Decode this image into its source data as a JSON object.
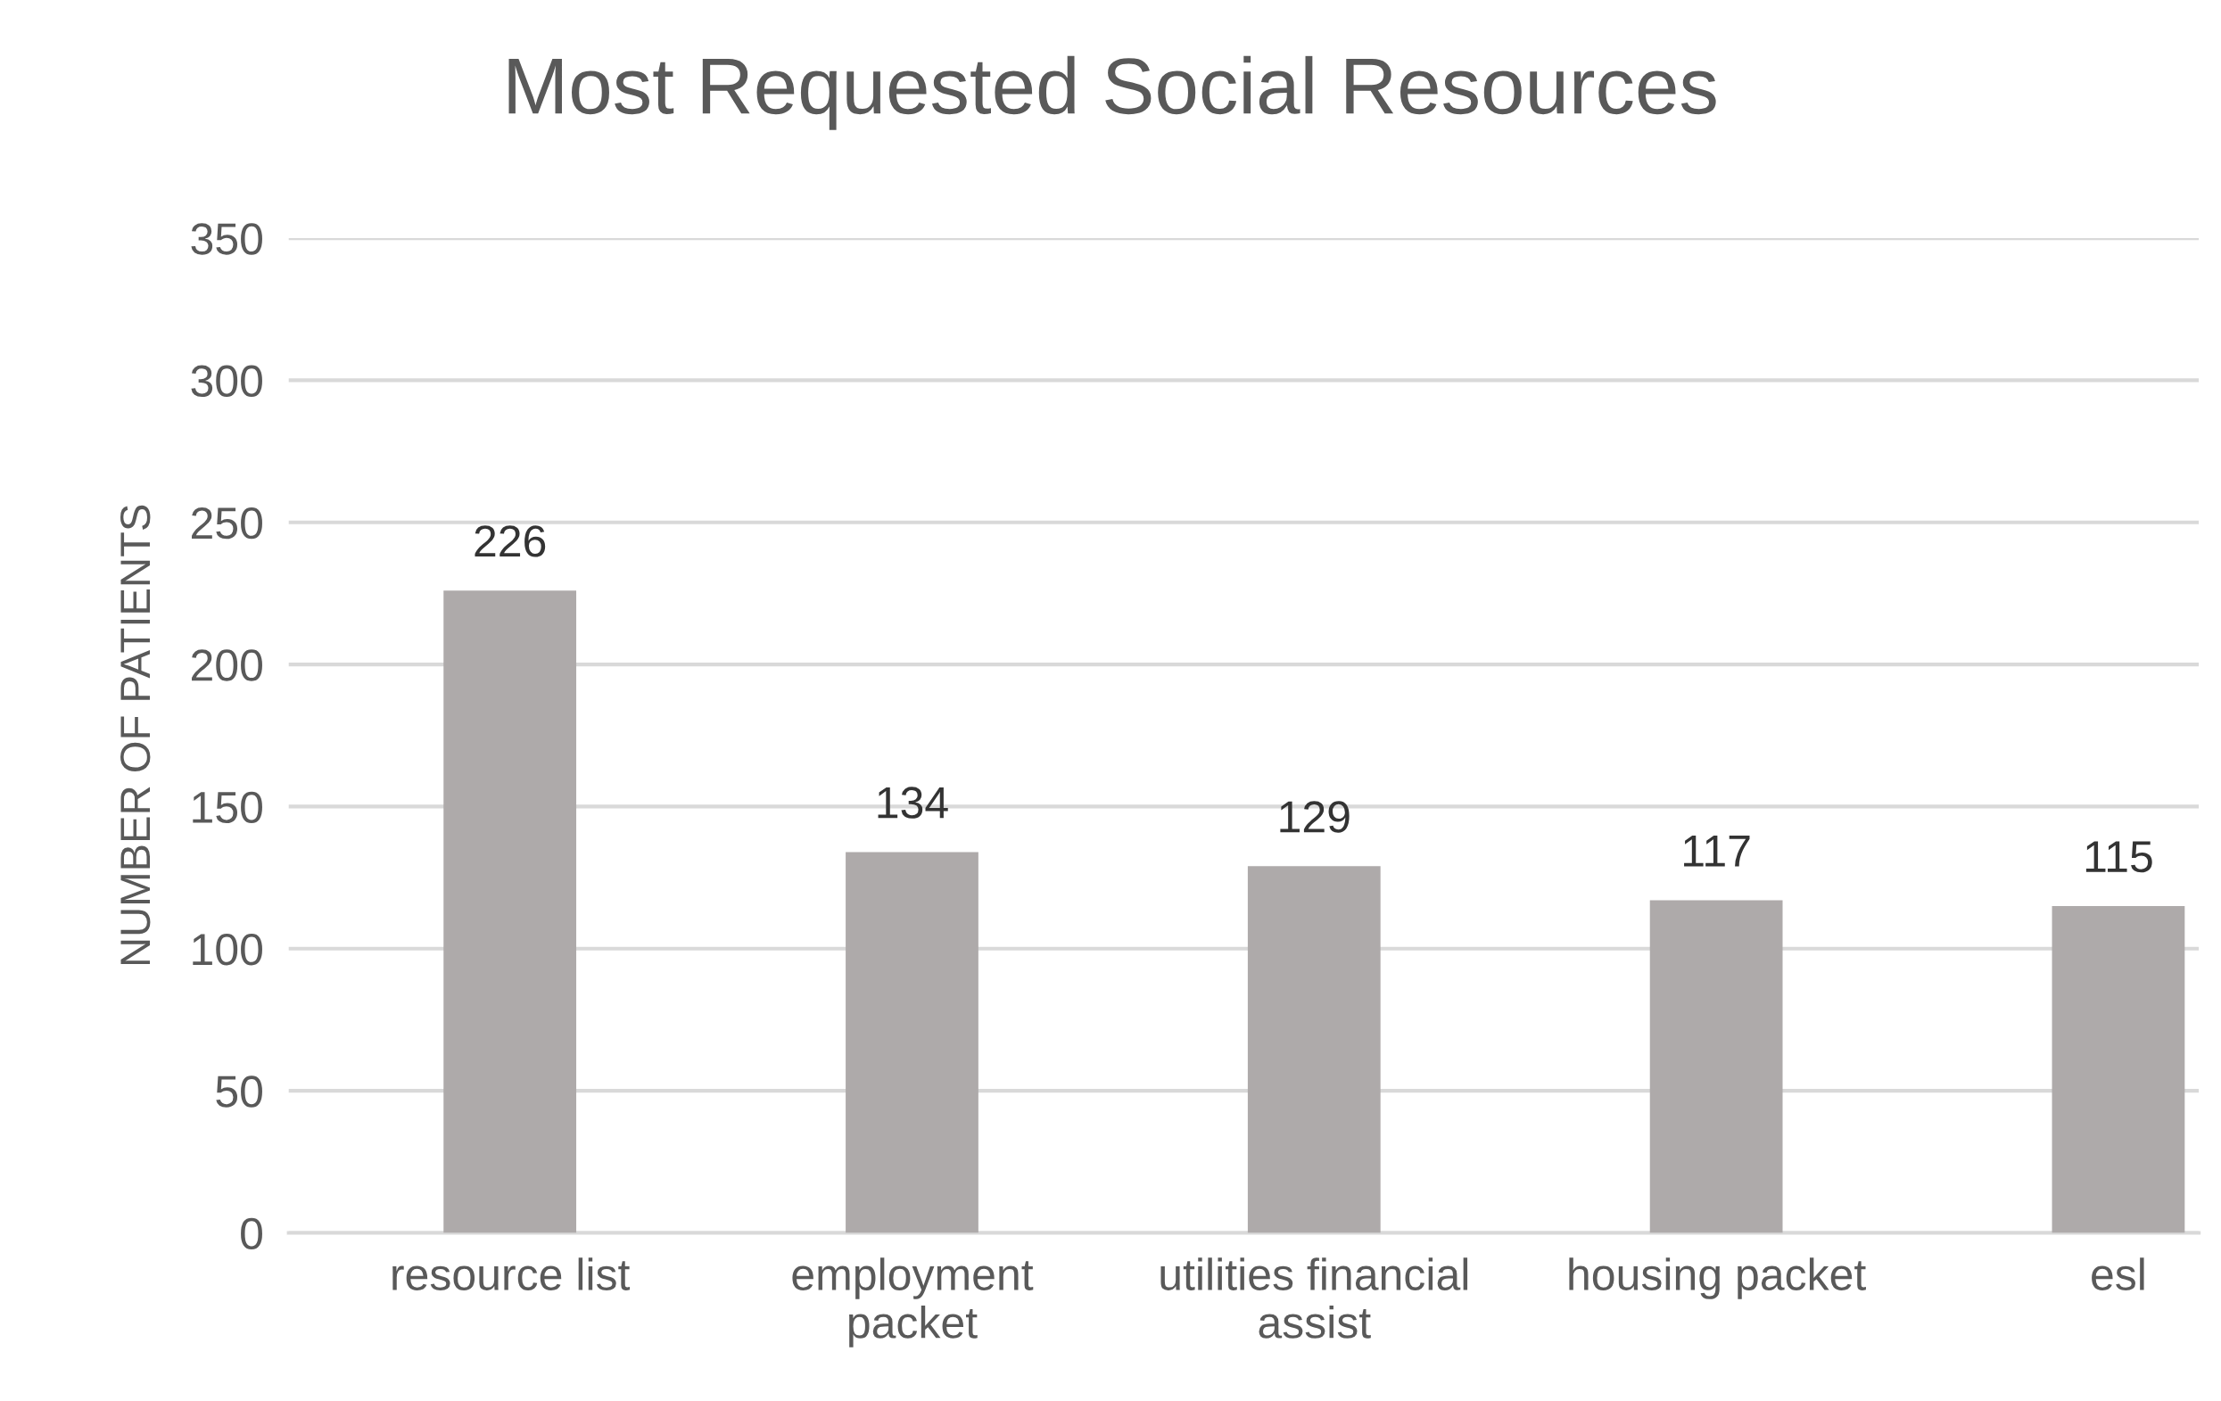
{
  "chart_data": {
    "type": "bar",
    "title": "Most Requested Social Resources",
    "ylabel": "NUMBER OF PATIENTS",
    "categories": [
      "resource list",
      "employment\npacket",
      "utilities financial\nassist",
      "housing packet",
      "esl"
    ],
    "values": [
      226,
      134,
      129,
      117,
      115
    ],
    "color": "#aeaaaa",
    "ylim": [
      0,
      350
    ],
    "yticks": [
      0,
      50,
      100,
      150,
      200,
      250,
      300,
      350
    ],
    "grid": "y",
    "data_labels": true
  }
}
